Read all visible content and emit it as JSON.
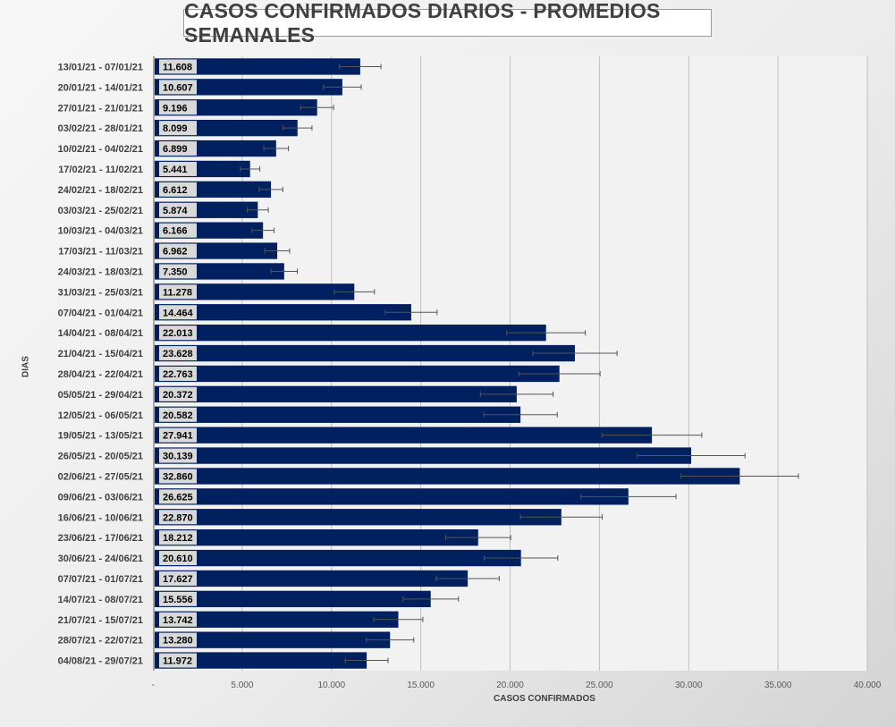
{
  "chart_data": {
    "type": "bar",
    "orientation": "horizontal",
    "title": "CASOS CONFIRMADOS DIARIOS - PROMEDIOS SEMANALES",
    "xlabel": "CASOS CONFIRMADOS",
    "ylabel": "DIAS",
    "xlim": [
      0,
      40000
    ],
    "x_ticks": [
      0,
      5000,
      10000,
      15000,
      20000,
      25000,
      30000,
      35000,
      40000
    ],
    "x_tick_labels": [
      "-",
      "5.000",
      "10.000",
      "15.000",
      "20.000",
      "25.000",
      "30.000",
      "35.000",
      "40.000"
    ],
    "grid": "vertical",
    "bar_color": "#002060",
    "categories": [
      "13/01/21 - 07/01/21",
      "20/01/21 - 14/01/21",
      "27/01/21 - 21/01/21",
      "03/02/21 - 28/01/21",
      "10/02/21 - 04/02/21",
      "17/02/21 - 11/02/21",
      "24/02/21 - 18/02/21",
      "03/03/21 - 25/02/21",
      "10/03/21 - 04/03/21",
      "17/03/21 - 11/03/21",
      "24/03/21 - 18/03/21",
      "31/03/21 - 25/03/21",
      "07/04/21 - 01/04/21",
      "14/04/21 - 08/04/21",
      "21/04/21 - 15/04/21",
      "28/04/21 - 22/04/21",
      "05/05/21 - 29/04/21",
      "12/05/21 - 06/05/21",
      "19/05/21 - 13/05/21",
      "26/05/21 - 20/05/21",
      "02/06/21 - 27/05/21",
      "09/06/21 - 03/06/21",
      "16/06/21 - 10/06/21",
      "23/06/21 - 17/06/21",
      "30/06/21 - 24/06/21",
      "07/07/21 - 01/07/21",
      "14/07/21 - 08/07/21",
      "21/07/21 - 15/07/21",
      "28/07/21 - 22/07/21",
      "04/08/21 - 29/07/21"
    ],
    "values": [
      11608,
      10607,
      9196,
      8099,
      6899,
      5441,
      6612,
      5874,
      6166,
      6962,
      7350,
      11278,
      14464,
      22013,
      23628,
      22763,
      20372,
      20582,
      27941,
      30139,
      32860,
      26625,
      22870,
      18212,
      20610,
      17627,
      15556,
      13742,
      13280,
      11972
    ],
    "value_labels": [
      "11.608",
      "10.607",
      "9.196",
      "8.099",
      "6.899",
      "5.441",
      "6.612",
      "5.874",
      "6.166",
      "6.962",
      "7.350",
      "11.278",
      "14.464",
      "22.013",
      "23.628",
      "22.763",
      "20.372",
      "20.582",
      "27.941",
      "30.139",
      "32.860",
      "26.625",
      "22.870",
      "18.212",
      "20.610",
      "17.627",
      "15.556",
      "13.742",
      "13.280",
      "11.972"
    ],
    "error_bars": "plus/minus 10% of value"
  }
}
